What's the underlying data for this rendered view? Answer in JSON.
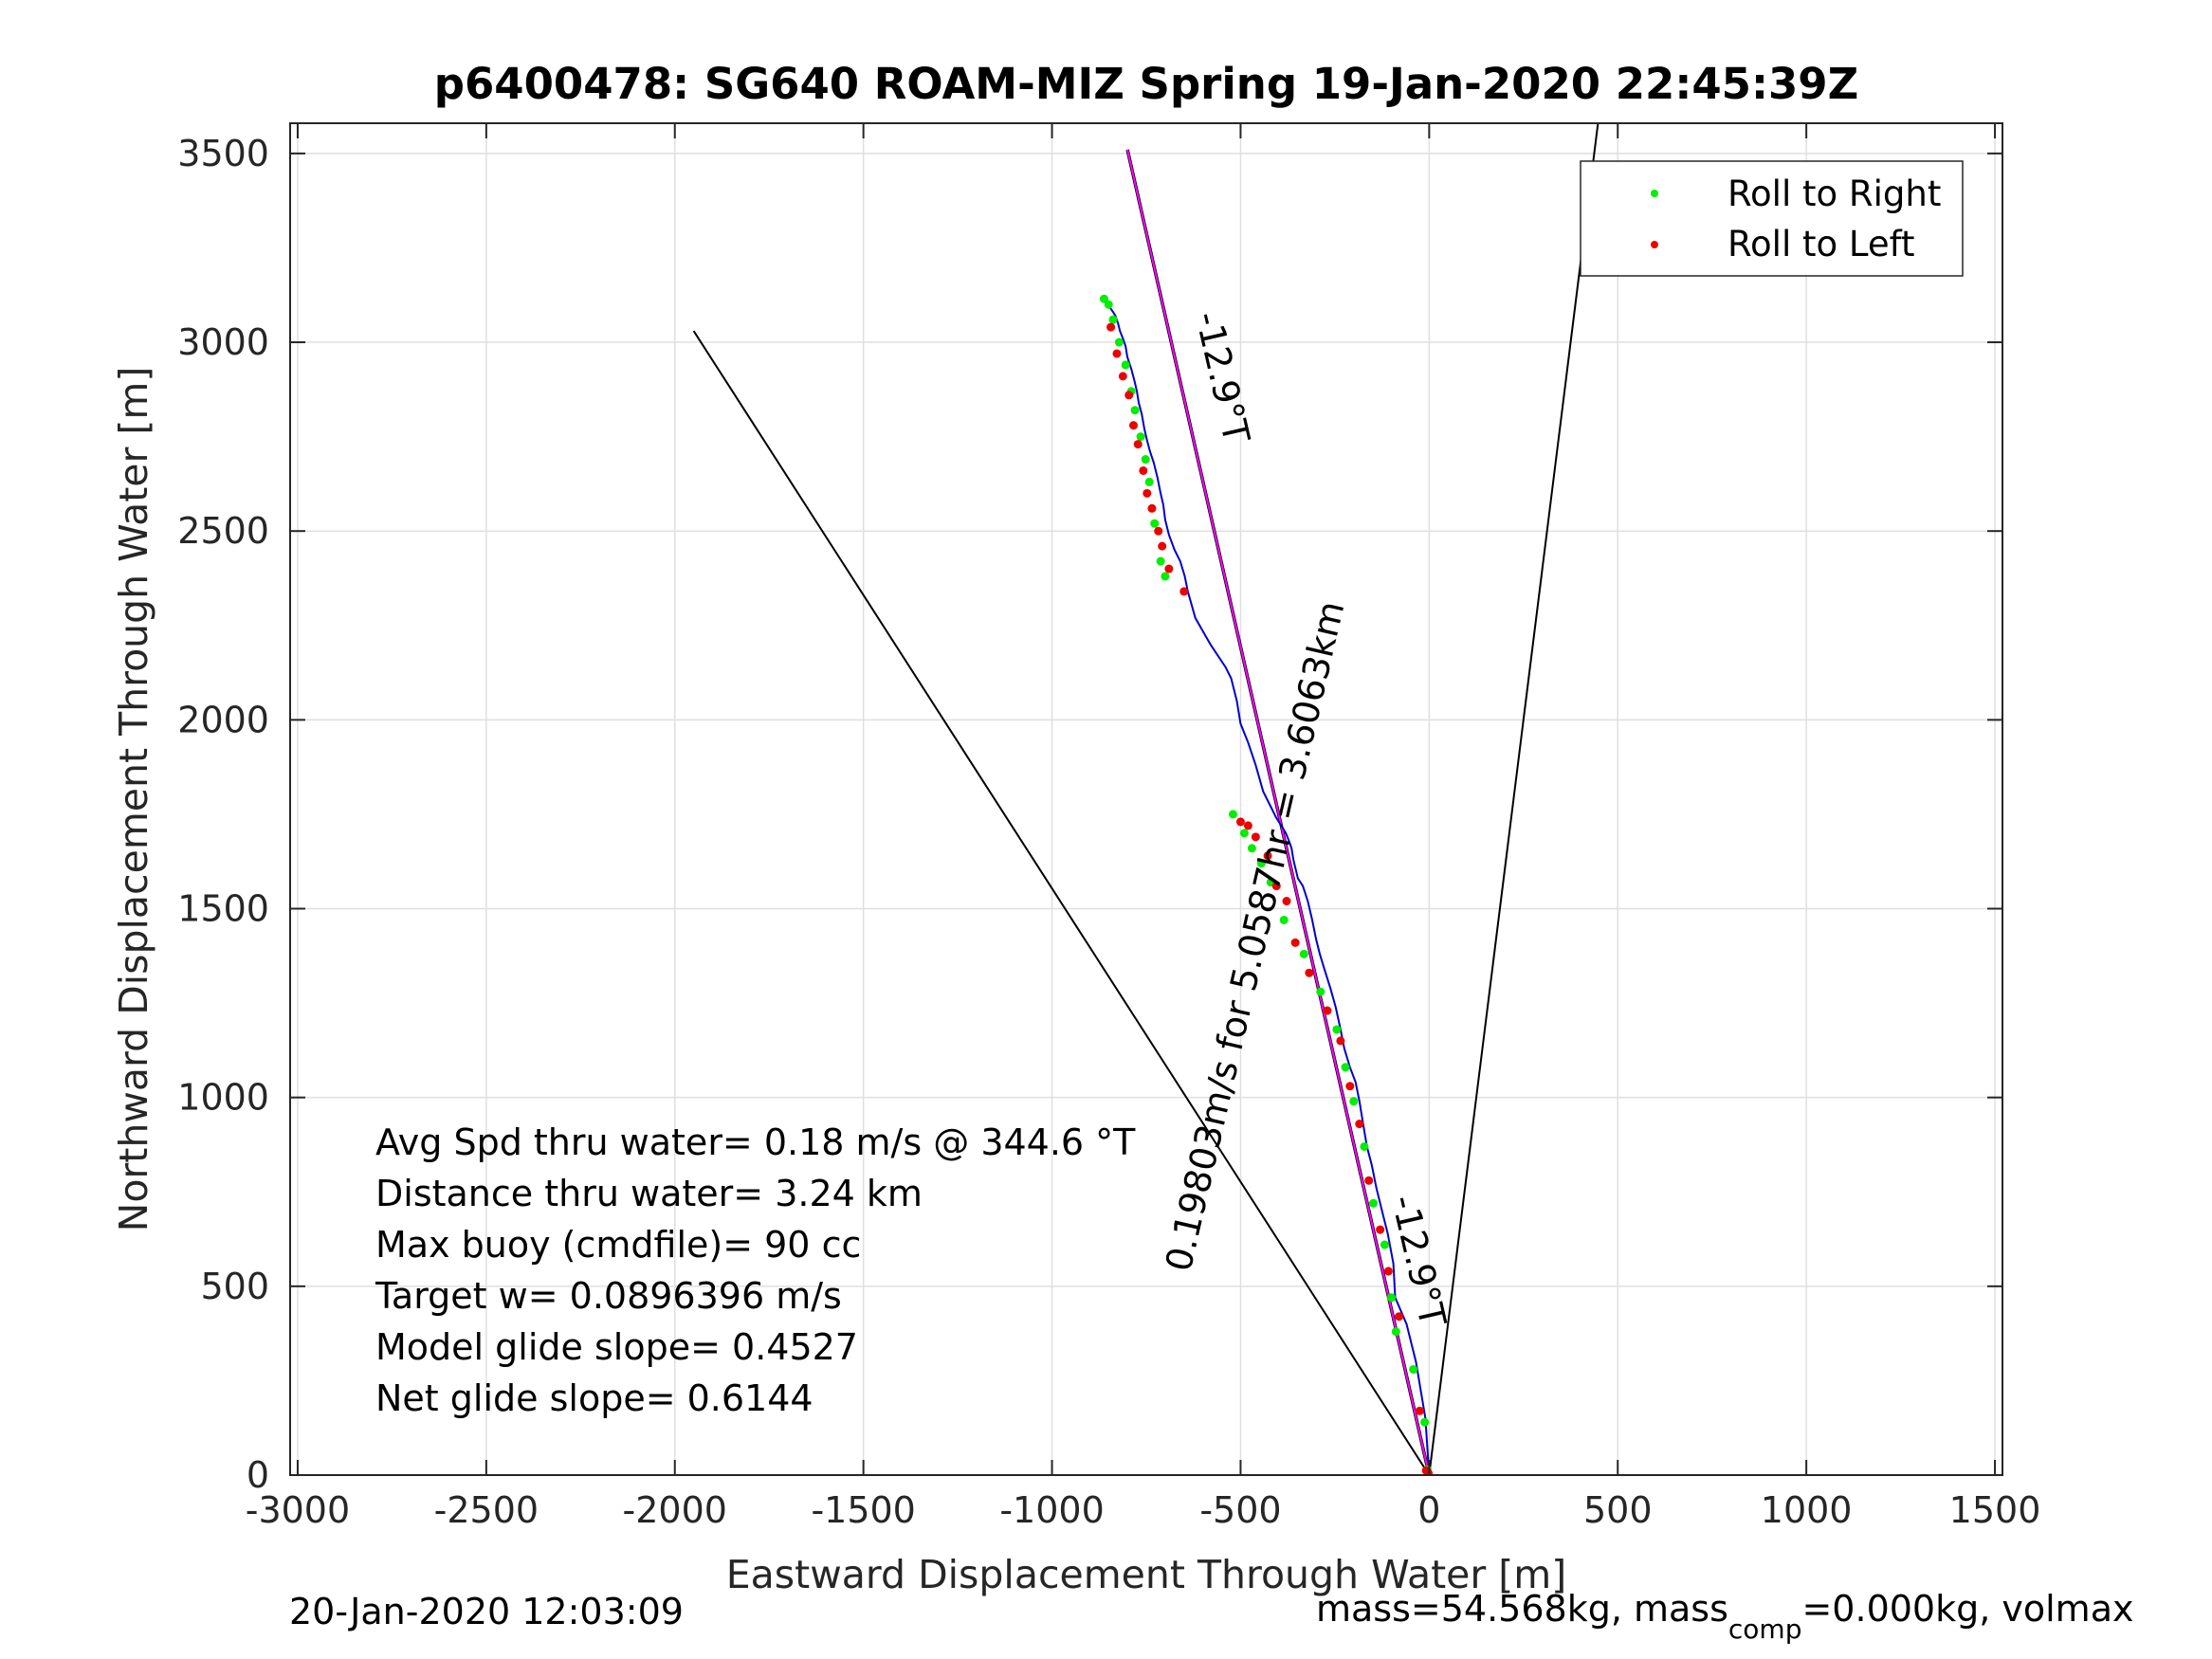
{
  "chart_data": {
    "type": "line",
    "title": "p6400478: SG640 ROAM-MIZ Spring 19-Jan-2020 22:45:39Z",
    "xlabel": "Eastward Displacement Through Water [m]",
    "ylabel": "Northward Displacement Through Water [m]",
    "xlim": [
      -3000,
      1500
    ],
    "ylim": [
      0,
      3500
    ],
    "xticks": [
      -3000,
      -2500,
      -2000,
      -1500,
      -1000,
      -500,
      0,
      500,
      1000,
      1500
    ],
    "yticks": [
      0,
      500,
      1000,
      1500,
      2000,
      2500,
      3000,
      3500
    ],
    "xtick_labels": [
      "-3000",
      "-2500",
      "-2000",
      "-1500",
      "-1000",
      "-500",
      "0",
      "500",
      "1000",
      "1500"
    ],
    "ytick_labels": [
      "0",
      "500",
      "1000",
      "1500",
      "2000",
      "2500",
      "3000",
      "3500"
    ],
    "grid": true,
    "legend_position": "top-right",
    "legend": [
      {
        "label": "Roll to Right",
        "color": "#00ee00"
      },
      {
        "label": "Roll to Left",
        "color": "#ee0000"
      }
    ],
    "colors": {
      "track": "#0000cc",
      "heading": "#ff00ff",
      "guide": "#000000",
      "axis": "#262626",
      "grid": "#dfdfdf"
    },
    "track": {
      "x": [
        0,
        -10,
        -35,
        -60,
        -90,
        -95,
        -110,
        -125,
        -140,
        -152,
        -165,
        -175,
        -185,
        -195,
        -210,
        -225,
        -235,
        -248,
        -262,
        -278,
        -290,
        -300,
        -310,
        -322,
        -335,
        -348,
        -360,
        -365,
        -372,
        -380,
        -392,
        -405,
        -420,
        -440,
        -460,
        -480,
        -500,
        -510,
        -525,
        -540,
        -580,
        -620,
        -640,
        -648,
        -660,
        -675,
        -690,
        -700,
        -705,
        -712,
        -720,
        -730,
        -740,
        -748,
        -755,
        -762,
        -770,
        -775,
        -782,
        -790,
        -800,
        -805,
        -812,
        -820,
        -825,
        -832,
        -838,
        -845,
        -852,
        -860,
        -865
      ],
      "y": [
        0,
        150,
        300,
        400,
        470,
        560,
        640,
        700,
        760,
        820,
        870,
        930,
        990,
        1040,
        1080,
        1130,
        1180,
        1240,
        1290,
        1340,
        1380,
        1420,
        1470,
        1520,
        1560,
        1580,
        1630,
        1660,
        1680,
        1700,
        1720,
        1740,
        1770,
        1810,
        1880,
        1940,
        1990,
        2050,
        2110,
        2140,
        2200,
        2270,
        2340,
        2380,
        2420,
        2450,
        2490,
        2530,
        2570,
        2600,
        2640,
        2680,
        2710,
        2740,
        2770,
        2810,
        2840,
        2870,
        2900,
        2930,
        2960,
        2990,
        3010,
        3030,
        3050,
        3070,
        3080,
        3090,
        3100,
        3110,
        3115
      ]
    },
    "roll_right": {
      "x": [
        -5,
        -12,
        -42,
        -88,
        -100,
        -118,
        -148,
        -172,
        -200,
        -222,
        -245,
        -288,
        -332,
        -385,
        -420,
        -445,
        -470,
        -490,
        -520,
        -700,
        -712,
        -728,
        -742,
        -752,
        -765,
        -780,
        -790,
        -805,
        -822,
        -838,
        -850,
        -862
      ],
      "y": [
        15,
        140,
        280,
        380,
        470,
        610,
        720,
        870,
        990,
        1080,
        1180,
        1280,
        1380,
        1470,
        1570,
        1620,
        1660,
        1700,
        1750,
        2380,
        2420,
        2520,
        2630,
        2690,
        2750,
        2820,
        2870,
        2940,
        3000,
        3060,
        3100,
        3115
      ]
    },
    "roll_left": {
      "x": [
        -2,
        -4,
        -8,
        -25,
        -80,
        -108,
        -130,
        -160,
        -185,
        -210,
        -235,
        -270,
        -318,
        -355,
        -378,
        -405,
        -428,
        -460,
        -480,
        -500,
        -650,
        -690,
        -708,
        -718,
        -735,
        -748,
        -758,
        -772,
        -784,
        -796,
        -812,
        -828,
        -844
      ],
      "y": [
        5,
        8,
        12,
        170,
        420,
        540,
        650,
        780,
        930,
        1030,
        1150,
        1230,
        1330,
        1410,
        1520,
        1560,
        1640,
        1690,
        1720,
        1730,
        2340,
        2400,
        2460,
        2500,
        2560,
        2600,
        2660,
        2730,
        2780,
        2860,
        2910,
        2970,
        3040
      ]
    },
    "heading_line": {
      "x": [
        0,
        -800
      ],
      "y": [
        0,
        3510
      ]
    },
    "guide_lines": [
      {
        "x": [
          0,
          -1950
        ],
        "y": [
          0,
          3030
        ]
      },
      {
        "x": [
          0,
          450
        ],
        "y": [
          0,
          3600
        ]
      }
    ],
    "annotations": [
      {
        "text": "-12.9°T",
        "x": -580,
        "y": 2900,
        "rotation": 77
      },
      {
        "text": "0.19803m/s for 5.0587hr = 3.6063km",
        "x": -430,
        "y": 1420,
        "rotation": -77
      },
      {
        "text": "-12.9°T",
        "x": -60,
        "y": 560,
        "rotation": 77
      }
    ],
    "stats": [
      "Avg Spd thru water=  0.18 m/s @ 344.6 °T",
      "Distance thru water=  3.24 km",
      "Max buoy (cmdfile)= 90 cc",
      "Target w= 0.0896396 m/s",
      "Model glide slope= 0.4527",
      "Net glide slope= 0.6144"
    ]
  },
  "footer": {
    "date": "20-Jan-2020 12:03:09",
    "mass_prefix": "mass=54.568kg, mass",
    "mass_sub": "comp",
    "mass_suffix": "=0.000kg, volmax"
  }
}
